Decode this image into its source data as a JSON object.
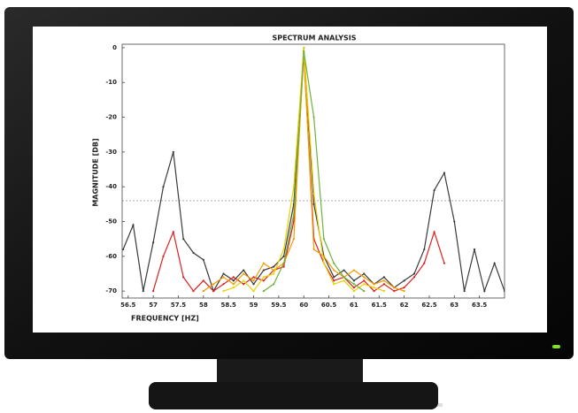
{
  "chart_data": {
    "type": "line",
    "title": "SPECTRUM ANALYSIS",
    "x_label": "FREQUENCY [HZ]",
    "y_label": "MAGNITUDE [DB]",
    "x": [
      56.4,
      56.6,
      56.8,
      57.0,
      57.2,
      57.4,
      57.6,
      57.8,
      58.0,
      58.2,
      58.4,
      58.6,
      58.8,
      59.0,
      59.2,
      59.4,
      59.6,
      59.8,
      60.0,
      60.2,
      60.4,
      60.6,
      60.8,
      61.0,
      61.2,
      61.4,
      61.6,
      61.8,
      62.0,
      62.2,
      62.4,
      62.6,
      62.8,
      63.0,
      63.2,
      63.4,
      63.6,
      63.8,
      64.0
    ],
    "series": [
      {
        "color": "#3a3a3a",
        "values": [
          -58,
          -51,
          -70,
          -56,
          -40,
          -30,
          -55,
          -59,
          -61,
          -70,
          -65,
          -67,
          -64,
          -68,
          -64,
          -63,
          -60,
          -45,
          0,
          -45,
          -60,
          -66,
          -64,
          -67,
          -65,
          -68,
          -66,
          -69,
          -67,
          -65,
          -58,
          -41,
          -36,
          -50,
          -70,
          -58,
          -70,
          -62,
          -70
        ]
      },
      {
        "color": "#e02020",
        "values": [
          null,
          null,
          null,
          -70,
          -60,
          -53,
          -66,
          -70,
          -67,
          -70,
          -68,
          -66,
          -68,
          -66,
          -67,
          -64,
          -63,
          -50,
          -2,
          -55,
          -62,
          -67,
          -66,
          -69,
          -67,
          -70,
          -68,
          -70,
          -69,
          -66,
          -62,
          -53,
          -62,
          null,
          null,
          null,
          null,
          null,
          null
        ]
      },
      {
        "color": "#f29a00",
        "values": [
          null,
          null,
          null,
          null,
          null,
          null,
          null,
          null,
          -70,
          -68,
          -66,
          -68,
          -65,
          -67,
          -62,
          -64,
          -62,
          -55,
          -1,
          -58,
          -60,
          -64,
          -66,
          -64,
          -66,
          -68,
          -67,
          -69,
          -70,
          null,
          null,
          null,
          null,
          null,
          null,
          null,
          null,
          null,
          null
        ]
      },
      {
        "color": "#e6d200",
        "values": [
          null,
          null,
          null,
          null,
          null,
          null,
          null,
          null,
          null,
          null,
          -70,
          -69,
          -67,
          -70,
          -66,
          -65,
          -58,
          -40,
          0,
          -42,
          -62,
          -68,
          -67,
          -70,
          -68,
          -69,
          -70,
          null,
          null,
          null,
          null,
          null,
          null,
          null,
          null,
          null,
          null,
          null,
          null
        ]
      },
      {
        "color": "#6cb33f",
        "values": [
          null,
          null,
          null,
          null,
          null,
          null,
          null,
          null,
          null,
          null,
          null,
          null,
          null,
          null,
          -70,
          -68,
          -62,
          -48,
          -1,
          -20,
          -55,
          -62,
          -66,
          -68,
          -70,
          null,
          null,
          null,
          null,
          null,
          null,
          null,
          null,
          null,
          null,
          null,
          null,
          null,
          null
        ]
      }
    ],
    "xlim": [
      56.38,
      64.0
    ],
    "ylim": [
      -72,
      1
    ],
    "xticks": [
      56.5,
      57,
      57.5,
      58,
      58.5,
      59,
      59.5,
      60,
      60.5,
      61,
      61.5,
      62,
      62.5,
      63,
      63.5
    ],
    "yticks": [
      0,
      -10,
      -20,
      -30,
      -40,
      -50,
      -60,
      -70
    ],
    "hline": -44
  }
}
